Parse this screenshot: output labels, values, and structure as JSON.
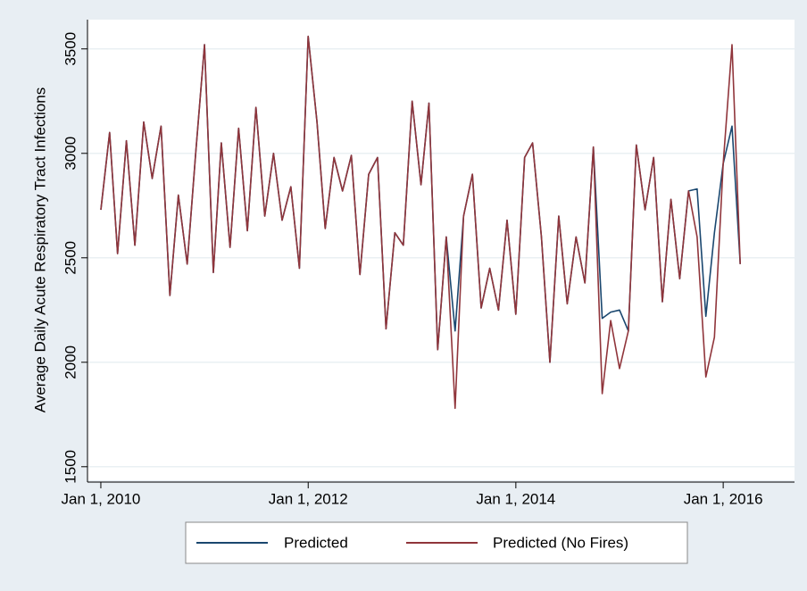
{
  "chart_data": {
    "type": "line",
    "y_label": "Average Daily Acute Respiratory Tract Infections",
    "x": [
      "2010-01-01",
      "2010-02-01",
      "2010-03-01",
      "2010-04-01",
      "2010-05-01",
      "2010-06-01",
      "2010-07-01",
      "2010-08-01",
      "2010-09-01",
      "2010-10-01",
      "2010-11-01",
      "2010-12-01",
      "2011-01-01",
      "2011-02-01",
      "2011-03-01",
      "2011-04-01",
      "2011-05-01",
      "2011-06-01",
      "2011-07-01",
      "2011-08-01",
      "2011-09-01",
      "2011-10-01",
      "2011-11-01",
      "2011-12-01",
      "2012-01-01",
      "2012-02-01",
      "2012-03-01",
      "2012-04-01",
      "2012-05-01",
      "2012-06-01",
      "2012-07-01",
      "2012-08-01",
      "2012-09-01",
      "2012-10-01",
      "2012-11-01",
      "2012-12-01",
      "2013-01-01",
      "2013-02-01",
      "2013-03-01",
      "2013-04-01",
      "2013-05-01",
      "2013-06-01",
      "2013-07-01",
      "2013-08-01",
      "2013-09-01",
      "2013-10-01",
      "2013-11-01",
      "2013-12-01",
      "2014-01-01",
      "2014-02-01",
      "2014-03-01",
      "2014-04-01",
      "2014-05-01",
      "2014-06-01",
      "2014-07-01",
      "2014-08-01",
      "2014-09-01",
      "2014-10-01",
      "2014-11-01",
      "2014-12-01",
      "2015-01-01",
      "2015-02-01",
      "2015-03-01",
      "2015-04-01",
      "2015-05-01",
      "2015-06-01",
      "2015-07-01",
      "2015-08-01",
      "2015-09-01",
      "2015-10-01",
      "2015-11-01",
      "2015-12-01",
      "2016-01-01",
      "2016-02-01",
      "2016-03-01"
    ],
    "series": [
      {
        "name": "Predicted",
        "color": "#1a476f",
        "values": [
          2730,
          3100,
          2520,
          3060,
          2560,
          3150,
          2880,
          3130,
          2320,
          2800,
          2470,
          3000,
          3520,
          2430,
          3050,
          2550,
          3120,
          2630,
          3220,
          2700,
          3000,
          2680,
          2840,
          2450,
          3560,
          3150,
          2640,
          2980,
          2820,
          2990,
          2420,
          2900,
          2980,
          2160,
          2620,
          2560,
          3250,
          2850,
          3240,
          2060,
          2600,
          2150,
          2700,
          2900,
          2260,
          2450,
          2250,
          2680,
          2230,
          2980,
          3050,
          2600,
          2000,
          2700,
          2280,
          2600,
          2380,
          3030,
          2210,
          2240,
          2250,
          2150,
          3040,
          2730,
          2980,
          2290,
          2780,
          2400,
          2820,
          2830,
          2220,
          2620,
          2950,
          3130,
          2470
        ]
      },
      {
        "name": "Predicted (No Fires)",
        "color": "#90353b",
        "values": [
          2730,
          3100,
          2520,
          3060,
          2560,
          3150,
          2880,
          3130,
          2320,
          2800,
          2470,
          3000,
          3520,
          2430,
          3050,
          2550,
          3120,
          2630,
          3220,
          2700,
          3000,
          2680,
          2840,
          2450,
          3560,
          3150,
          2640,
          2980,
          2820,
          2990,
          2420,
          2900,
          2980,
          2160,
          2620,
          2560,
          3250,
          2850,
          3240,
          2060,
          2600,
          1780,
          2700,
          2900,
          2260,
          2450,
          2250,
          2680,
          2230,
          2980,
          3050,
          2600,
          2000,
          2700,
          2280,
          2600,
          2380,
          3030,
          1850,
          2200,
          1970,
          2150,
          3040,
          2730,
          2980,
          2290,
          2780,
          2400,
          2820,
          2600,
          1930,
          2120,
          2950,
          3520,
          2470
        ]
      }
    ],
    "xlim": [
      "2009-11-15",
      "2016-09-08"
    ],
    "xticks": [
      {
        "value": "2010-01-01",
        "label": "Jan 1, 2010"
      },
      {
        "value": "2012-01-01",
        "label": "Jan 1, 2012"
      },
      {
        "value": "2014-01-01",
        "label": "Jan 1, 2014"
      },
      {
        "value": "2016-01-01",
        "label": "Jan 1, 2016"
      }
    ],
    "ylim": [
      1435,
      3640
    ],
    "yticks": [
      1500,
      2000,
      2500,
      3000,
      3500
    ],
    "grid": true,
    "legend": "bottom"
  }
}
